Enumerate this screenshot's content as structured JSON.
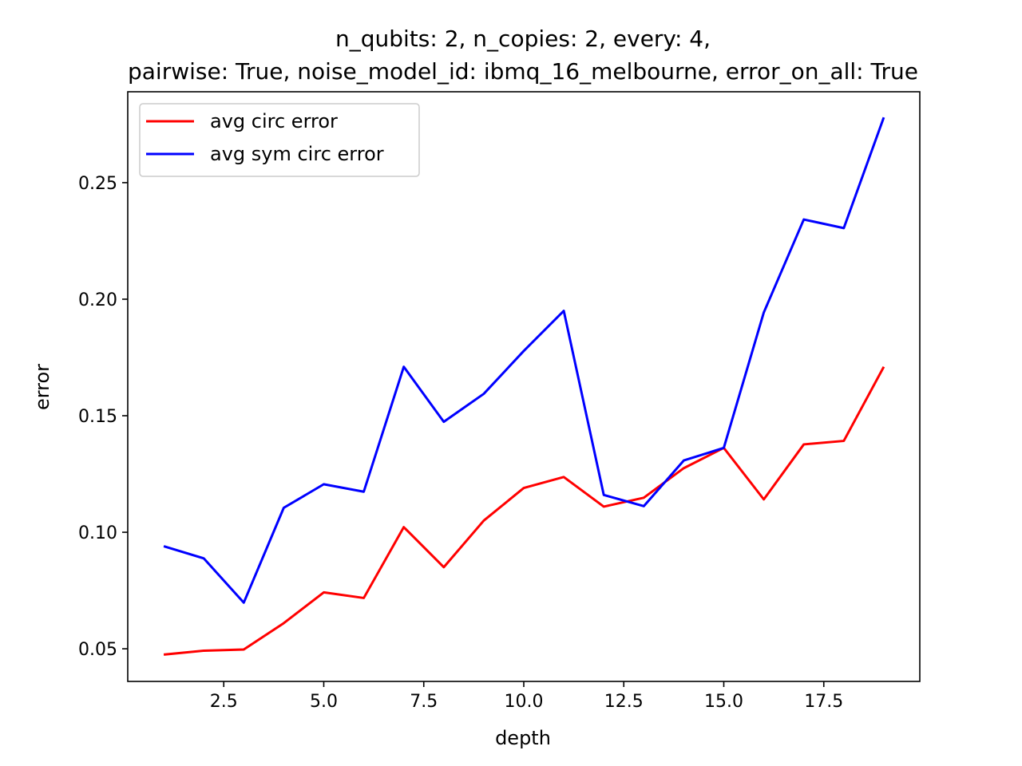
{
  "chart_data": {
    "type": "line",
    "title_lines": [
      "n_qubits: 2, n_copies: 2, every: 4,",
      "pairwise: True, noise_model_id: ibmq_16_melbourne, error_on_all: True"
    ],
    "xlabel": "depth",
    "ylabel": "error",
    "xlim": [
      0.1,
      19.9
    ],
    "ylim": [
      0.036,
      0.289
    ],
    "xticks": [
      2.5,
      5.0,
      7.5,
      10.0,
      12.5,
      15.0,
      17.5
    ],
    "yticks": [
      0.05,
      0.1,
      0.15,
      0.2,
      0.25
    ],
    "grid": false,
    "legend_position": "top-left",
    "x": [
      1,
      2,
      3,
      4,
      5,
      6,
      7,
      8,
      9,
      10,
      11,
      12,
      13,
      14,
      15,
      16,
      17,
      18,
      19
    ],
    "series": [
      {
        "name": "avg circ error",
        "color": "#ff0000",
        "values": [
          0.0475,
          0.0492,
          0.0497,
          0.061,
          0.0742,
          0.0718,
          0.1022,
          0.085,
          0.105,
          0.119,
          0.1237,
          0.111,
          0.1148,
          0.1275,
          0.1362,
          0.1141,
          0.1377,
          0.1392,
          0.171
        ]
      },
      {
        "name": "avg sym circ error",
        "color": "#0000ff",
        "values": [
          0.094,
          0.0888,
          0.0698,
          0.1105,
          0.1206,
          0.1174,
          0.171,
          0.1474,
          0.1594,
          0.1778,
          0.195,
          0.116,
          0.1112,
          0.1308,
          0.1362,
          0.1943,
          0.2342,
          0.2305,
          0.278
        ]
      }
    ]
  }
}
